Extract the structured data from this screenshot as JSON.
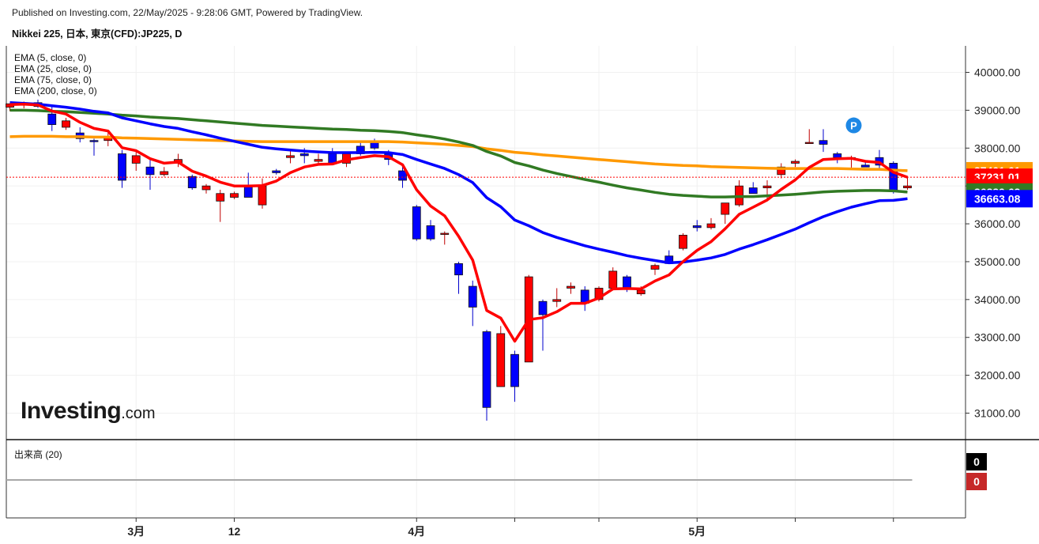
{
  "header": {
    "published": "Published on Investing.com, 22/May/2025 - 9:28:06 GMT, Powered by TradingView.",
    "symbol": "Nikkei 225, 日本, 東京(CFD):JP225, D"
  },
  "legend": [
    {
      "label": "EMA (5, close, 0)",
      "color": "#ff0000"
    },
    {
      "label": "EMA (25, close, 0)",
      "color": "#0000ff"
    },
    {
      "label": "EMA (75, close, 0)",
      "color": "#317a23"
    },
    {
      "label": "EMA (200, close, 0)",
      "color": "#ff9900"
    }
  ],
  "volume_panel": {
    "label": "出来高 (20)",
    "values": [
      "0",
      "0"
    ],
    "badge_colors": [
      "#000000",
      "#c62828"
    ]
  },
  "logo": {
    "main": "Investing",
    "sub": ".com"
  },
  "chart_data": {
    "type": "candlestick",
    "y_axis": {
      "ticks": [
        31000,
        32000,
        33000,
        34000,
        35000,
        36000,
        37000,
        38000,
        39000,
        40000
      ],
      "tick_labels": [
        "31000.00",
        "32000.00",
        "33000.00",
        "34000.00",
        "35000.00",
        "36000.00",
        "37000.00",
        "38000.00",
        "39000.00",
        "40000.00"
      ],
      "range": [
        30300,
        40700
      ]
    },
    "x_axis": {
      "labels": [
        {
          "text": "3月",
          "date": "2025-03-03",
          "index": 9
        },
        {
          "text": "12",
          "date": "2025-03-12",
          "index": 16
        },
        {
          "text": "4月",
          "date": "2025-04-01",
          "index": 29
        },
        {
          "text": "5月",
          "date": "2025-05-01",
          "index": 49
        }
      ],
      "extra_gridline_indices": [
        36,
        42,
        56,
        63
      ]
    },
    "candles": [
      {
        "o": 39080,
        "h": 39180,
        "l": 38980,
        "c": 39170
      },
      {
        "o": 39170,
        "h": 39230,
        "l": 39050,
        "c": 39200
      },
      {
        "o": 39200,
        "h": 39280,
        "l": 39060,
        "c": 39100
      },
      {
        "o": 38900,
        "h": 39100,
        "l": 38450,
        "c": 38620
      },
      {
        "o": 38550,
        "h": 38800,
        "l": 38480,
        "c": 38720
      },
      {
        "o": 38400,
        "h": 38550,
        "l": 38150,
        "c": 38250
      },
      {
        "o": 38200,
        "h": 38250,
        "l": 37800,
        "c": 38180
      },
      {
        "o": 38200,
        "h": 38400,
        "l": 38050,
        "c": 38300
      },
      {
        "o": 37850,
        "h": 37950,
        "l": 36950,
        "c": 37150
      },
      {
        "o": 37600,
        "h": 37950,
        "l": 37400,
        "c": 37800
      },
      {
        "o": 37500,
        "h": 37700,
        "l": 36900,
        "c": 37300
      },
      {
        "o": 37300,
        "h": 37500,
        "l": 37250,
        "c": 37380
      },
      {
        "o": 37600,
        "h": 37850,
        "l": 37500,
        "c": 37700
      },
      {
        "o": 37250,
        "h": 37300,
        "l": 36900,
        "c": 36950
      },
      {
        "o": 36900,
        "h": 37050,
        "l": 36800,
        "c": 37000
      },
      {
        "o": 36600,
        "h": 36900,
        "l": 36050,
        "c": 36800
      },
      {
        "o": 36700,
        "h": 36850,
        "l": 36650,
        "c": 36800
      },
      {
        "o": 37000,
        "h": 37350,
        "l": 36800,
        "c": 36700
      },
      {
        "o": 36500,
        "h": 37200,
        "l": 36400,
        "c": 37000
      },
      {
        "o": 37400,
        "h": 37450,
        "l": 37300,
        "c": 37350
      },
      {
        "o": 37750,
        "h": 37950,
        "l": 37600,
        "c": 37800
      },
      {
        "o": 37850,
        "h": 38000,
        "l": 37600,
        "c": 37800
      },
      {
        "o": 37650,
        "h": 37850,
        "l": 37550,
        "c": 37700
      },
      {
        "o": 37850,
        "h": 38000,
        "l": 37550,
        "c": 37600
      },
      {
        "o": 37600,
        "h": 37900,
        "l": 37500,
        "c": 37850
      },
      {
        "o": 38050,
        "h": 38200,
        "l": 37800,
        "c": 37850
      },
      {
        "o": 38150,
        "h": 38250,
        "l": 37950,
        "c": 38000
      },
      {
        "o": 37850,
        "h": 37950,
        "l": 37550,
        "c": 37700
      },
      {
        "o": 37400,
        "h": 37500,
        "l": 36950,
        "c": 37150
      },
      {
        "o": 36450,
        "h": 36500,
        "l": 35550,
        "c": 35600
      },
      {
        "o": 35950,
        "h": 36100,
        "l": 35550,
        "c": 35600
      },
      {
        "o": 35750,
        "h": 35800,
        "l": 35450,
        "c": 35750
      },
      {
        "o": 34950,
        "h": 35000,
        "l": 34150,
        "c": 34650
      },
      {
        "o": 34350,
        "h": 34500,
        "l": 33300,
        "c": 33800
      },
      {
        "o": 33150,
        "h": 33200,
        "l": 30800,
        "c": 31150
      },
      {
        "o": 31700,
        "h": 33300,
        "l": 31700,
        "c": 33100
      },
      {
        "o": 32550,
        "h": 32650,
        "l": 31300,
        "c": 31700
      },
      {
        "o": 32350,
        "h": 34650,
        "l": 32350,
        "c": 34600
      },
      {
        "o": 33950,
        "h": 34000,
        "l": 32650,
        "c": 33600
      },
      {
        "o": 33950,
        "h": 34300,
        "l": 33800,
        "c": 34000
      },
      {
        "o": 34300,
        "h": 34450,
        "l": 34150,
        "c": 34350
      },
      {
        "o": 34250,
        "h": 34350,
        "l": 33700,
        "c": 33900
      },
      {
        "o": 34000,
        "h": 34350,
        "l": 33950,
        "c": 34300
      },
      {
        "o": 34300,
        "h": 34850,
        "l": 34250,
        "c": 34750
      },
      {
        "o": 34600,
        "h": 34650,
        "l": 34200,
        "c": 34300
      },
      {
        "o": 34150,
        "h": 34350,
        "l": 34100,
        "c": 34250
      },
      {
        "o": 34800,
        "h": 34950,
        "l": 34650,
        "c": 34900
      },
      {
        "o": 35150,
        "h": 35300,
        "l": 34950,
        "c": 34950
      },
      {
        "o": 35350,
        "h": 35750,
        "l": 35300,
        "c": 35700
      },
      {
        "o": 35950,
        "h": 36100,
        "l": 35800,
        "c": 35900
      },
      {
        "o": 35900,
        "h": 36150,
        "l": 35850,
        "c": 36000
      },
      {
        "o": 36250,
        "h": 36500,
        "l": 36000,
        "c": 36550
      },
      {
        "o": 36500,
        "h": 37150,
        "l": 36450,
        "c": 37000
      },
      {
        "o": 36950,
        "h": 37100,
        "l": 36800,
        "c": 36800
      },
      {
        "o": 36950,
        "h": 37150,
        "l": 36650,
        "c": 37000
      },
      {
        "o": 37300,
        "h": 37600,
        "l": 37200,
        "c": 37500
      },
      {
        "o": 37600,
        "h": 37700,
        "l": 37500,
        "c": 37650
      },
      {
        "o": 38150,
        "h": 38500,
        "l": 38150,
        "c": 38150
      },
      {
        "o": 38200,
        "h": 38500,
        "l": 37900,
        "c": 38100
      },
      {
        "o": 37850,
        "h": 37900,
        "l": 37600,
        "c": 37750
      },
      {
        "o": 37750,
        "h": 37800,
        "l": 37450,
        "c": 37750
      },
      {
        "o": 37550,
        "h": 37650,
        "l": 37500,
        "c": 37500
      },
      {
        "o": 37750,
        "h": 37950,
        "l": 37450,
        "c": 37550
      },
      {
        "o": 37600,
        "h": 37650,
        "l": 36800,
        "c": 36850
      },
      {
        "o": 36950,
        "h": 37250,
        "l": 36900,
        "c": 37000
      }
    ],
    "series": [
      {
        "name": "EMA (5, close, 0)",
        "color": "#ff0000",
        "last_label": "37231.01",
        "values": [
          39150,
          39160,
          39140,
          38980,
          38900,
          38680,
          38520,
          38450,
          38010,
          37930,
          37720,
          37600,
          37630,
          37390,
          37260,
          37100,
          37000,
          37000,
          37010,
          37130,
          37350,
          37500,
          37570,
          37580,
          37690,
          37750,
          37800,
          37770,
          37560,
          36900,
          36470,
          36210,
          35670,
          35040,
          33710,
          33510,
          32900,
          33470,
          33520,
          33680,
          33900,
          33900,
          34040,
          34280,
          34290,
          34280,
          34490,
          34650,
          35000,
          35300,
          35530,
          35870,
          36250,
          36440,
          36630,
          36910,
          37160,
          37490,
          37700,
          37720,
          37730,
          37650,
          37620,
          37360,
          37231.01
        ]
      },
      {
        "name": "EMA (25, close, 0)",
        "color": "#0000ff",
        "last_label": "36663.08",
        "values": [
          39200,
          39180,
          39160,
          39120,
          39080,
          39030,
          38970,
          38930,
          38800,
          38720,
          38640,
          38570,
          38520,
          38430,
          38350,
          38260,
          38180,
          38100,
          38020,
          37980,
          37950,
          37920,
          37900,
          37880,
          37880,
          37880,
          37890,
          37880,
          37830,
          37700,
          37580,
          37460,
          37300,
          37090,
          36690,
          36450,
          36100,
          35950,
          35770,
          35640,
          35530,
          35420,
          35330,
          35250,
          35160,
          35090,
          35030,
          34970,
          34990,
          35040,
          35100,
          35190,
          35330,
          35450,
          35580,
          35720,
          35860,
          36030,
          36190,
          36320,
          36440,
          36530,
          36610,
          36620,
          36663.08
        ]
      },
      {
        "name": "EMA (75, close, 0)",
        "color": "#317a23",
        "last_label": "36839.63",
        "values": [
          39000,
          39000,
          38990,
          38970,
          38960,
          38940,
          38920,
          38900,
          38870,
          38850,
          38820,
          38800,
          38780,
          38750,
          38720,
          38690,
          38660,
          38630,
          38600,
          38580,
          38560,
          38540,
          38520,
          38500,
          38490,
          38470,
          38460,
          38440,
          38410,
          38350,
          38300,
          38240,
          38160,
          38070,
          37910,
          37790,
          37620,
          37530,
          37420,
          37330,
          37250,
          37170,
          37100,
          37020,
          36950,
          36890,
          36830,
          36780,
          36750,
          36730,
          36710,
          36710,
          36720,
          36720,
          36740,
          36760,
          36780,
          36810,
          36840,
          36860,
          36870,
          36880,
          36880,
          36870,
          36839.63
        ]
      },
      {
        "name": "EMA (200, close, 0)",
        "color": "#ff9900",
        "last_label": "37401.61",
        "values": [
          38300,
          38310,
          38310,
          38310,
          38300,
          38300,
          38290,
          38290,
          38270,
          38260,
          38250,
          38240,
          38230,
          38220,
          38210,
          38200,
          38190,
          38180,
          38170,
          38170,
          38170,
          38170,
          38170,
          38170,
          38170,
          38170,
          38170,
          38170,
          38160,
          38140,
          38120,
          38100,
          38070,
          38040,
          37980,
          37940,
          37890,
          37860,
          37820,
          37790,
          37760,
          37730,
          37700,
          37670,
          37640,
          37610,
          37580,
          37560,
          37540,
          37530,
          37510,
          37500,
          37490,
          37480,
          37470,
          37460,
          37460,
          37460,
          37460,
          37460,
          37450,
          37440,
          37440,
          37420,
          37401.61
        ]
      }
    ],
    "last_price": {
      "value": 37231.01,
      "label": "37231.01"
    },
    "badge_labels": [
      {
        "text": "37401.61",
        "value": 37401.61,
        "color": "#ff9900"
      },
      {
        "text": "37231.01",
        "value": 37231.01,
        "color": "#ff0000"
      },
      {
        "text": "36955.00",
        "value": 36955.0,
        "color": "#ff0000"
      },
      {
        "text": "36839.63",
        "value": 36839.63,
        "color": "#317a23"
      },
      {
        "text": "36663.08",
        "value": 36663.08,
        "color": "#0000ff"
      }
    ],
    "marker": {
      "text": "P",
      "index": 60,
      "value": 38600,
      "color": "#1e88e5"
    },
    "colors": {
      "up": "#ff0000",
      "down": "#0000ff"
    }
  }
}
